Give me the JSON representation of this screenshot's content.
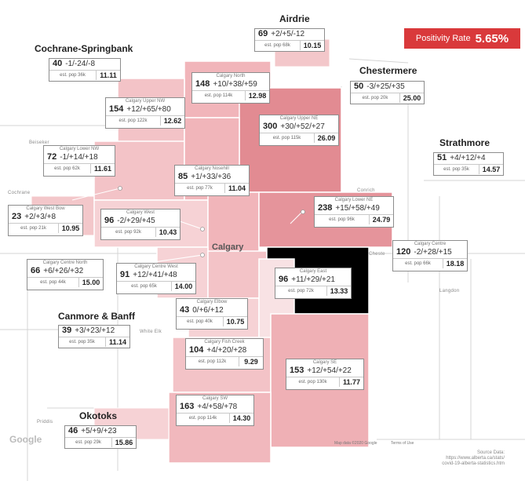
{
  "positivity": {
    "label": "Positivity Rate",
    "value": "5.65%"
  },
  "colors": {
    "accent": "#d9393b",
    "region_fill": "#f2bcc0",
    "region_dark": "#e2848c",
    "region_light": "#f6d6d8"
  },
  "regions": [
    {
      "id": "airdrie",
      "title": "Airdrie",
      "cases": "69",
      "change": "+2/+5/-12",
      "pop": "est. pop 68k",
      "rate": "10.15"
    },
    {
      "id": "cochrane",
      "title": "Cochrane-Springbank",
      "cases": "40",
      "change": "-1/-24/-8",
      "pop": "est. pop 36k",
      "rate": "11.11"
    },
    {
      "id": "chestermere",
      "title": "Chestermere",
      "cases": "50",
      "change": "-3/+25/+35",
      "pop": "est. pop 20k",
      "rate": "25.00"
    },
    {
      "id": "strathmore",
      "title": "Strathmore",
      "cases": "51",
      "change": "+4/+12/+4",
      "pop": "est. pop 35k",
      "rate": "14.57"
    },
    {
      "id": "canmore",
      "title": "Canmore & Banff",
      "cases": "39",
      "change": "+3/+23/+12",
      "pop": "est. pop 35k",
      "rate": "11.14"
    },
    {
      "id": "okotoks",
      "title": "Okotoks",
      "cases": "46",
      "change": "+5/+9/+23",
      "pop": "est. pop 29k",
      "rate": "15.86"
    },
    {
      "id": "calgary_north",
      "name": "Calgary North",
      "cases": "148",
      "change": "+10/+38/+59",
      "pop": "est. pop 114k",
      "rate": "12.98"
    },
    {
      "id": "calgary_upper_nw",
      "name": "Calgary Upper NW",
      "cases": "154",
      "change": "+12/+65/+80",
      "pop": "est. pop 122k",
      "rate": "12.62"
    },
    {
      "id": "calgary_upper_ne",
      "name": "Calgary Upper NE",
      "cases": "300",
      "change": "+30/+52/+27",
      "pop": "est. pop 115k",
      "rate": "26.09"
    },
    {
      "id": "calgary_lower_nw",
      "name": "Calgary Lower NW",
      "cases": "72",
      "change": "-1/+14/+18",
      "pop": "est. pop 62k",
      "rate": "11.61"
    },
    {
      "id": "calgary_nosehill",
      "name": "Calgary Nosehill",
      "cases": "85",
      "change": "+1/+33/+36",
      "pop": "est. pop 77k",
      "rate": "11.04"
    },
    {
      "id": "calgary_west_bow",
      "name": "Calgary West Bow",
      "cases": "23",
      "change": "+2/+3/+8",
      "pop": "est. pop 21k",
      "rate": "10.95"
    },
    {
      "id": "calgary_west",
      "name": "Calgary West",
      "cases": "96",
      "change": "-2/+29/+45",
      "pop": "est. pop 92k",
      "rate": "10.43"
    },
    {
      "id": "calgary_lower_ne",
      "name": "Calgary Lower NE",
      "cases": "238",
      "change": "+15/+58/+49",
      "pop": "est. pop 96k",
      "rate": "24.79"
    },
    {
      "id": "calgary_centre",
      "name": "Calgary Centre",
      "cases": "120",
      "change": "-2/+28/+15",
      "pop": "est. pop 66k",
      "rate": "18.18"
    },
    {
      "id": "calgary_centre_north",
      "name": "Calgary Centre North",
      "cases": "66",
      "change": "+6/+26/+32",
      "pop": "est. pop 44k",
      "rate": "15.00"
    },
    {
      "id": "calgary_centre_west",
      "name": "Calgary Centre West",
      "cases": "91",
      "change": "+12/+41/+48",
      "pop": "est. pop 65k",
      "rate": "14.00"
    },
    {
      "id": "calgary_east",
      "name": "Calgary East",
      "cases": "96",
      "change": "+11/+29/+21",
      "pop": "est. pop 72k",
      "rate": "13.33"
    },
    {
      "id": "calgary_elbow",
      "name": "Calgary Elbow",
      "cases": "43",
      "change": "0/+6/+12",
      "pop": "est. pop 40k",
      "rate": "10.75"
    },
    {
      "id": "calgary_fish_creek",
      "name": "Calgary Fish Creek",
      "cases": "104",
      "change": "+4/+20/+28",
      "pop": "est. pop 112k",
      "rate": "9.29"
    },
    {
      "id": "calgary_se",
      "name": "Calgary SE",
      "cases": "153",
      "change": "+12/+54/+22",
      "pop": "est. pop 130k",
      "rate": "11.77"
    },
    {
      "id": "calgary_sw",
      "name": "Calgary SW",
      "cases": "163",
      "change": "+4/+58/+78",
      "pop": "est. pop 114k",
      "rate": "14.30"
    }
  ],
  "map_labels": {
    "city": "Calgary",
    "beiseker": "Beiseker",
    "cochrane": "Cochrane",
    "conrich": "Conrich",
    "priddis": "Priddis",
    "white_elk": "White Elk",
    "chestermere_town": "Cheste",
    "langdon": "Langdon",
    "google": "Google",
    "map_data": "Map data ©2020 Google",
    "terms": "Terms of Use"
  },
  "source": {
    "line1": "Source Data:",
    "line2": "https://www.alberta.ca/stats/",
    "line3": "covid-19-alberta-statistics.htm"
  }
}
